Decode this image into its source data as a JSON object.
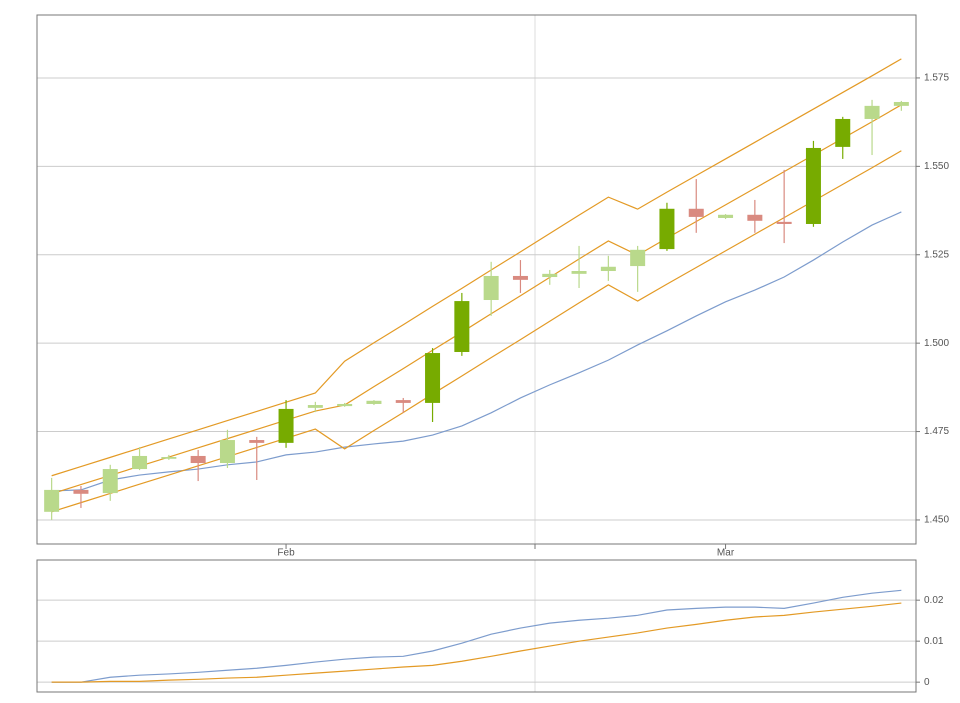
{
  "chart_data": [
    {
      "type": "candlestick",
      "categories": [
        null,
        null,
        null,
        null,
        null,
        null,
        null,
        null,
        "Feb",
        null,
        null,
        null,
        null,
        null,
        null,
        null,
        null,
        null,
        null,
        null,
        null,
        null,
        null,
        "Mar",
        null,
        null,
        null,
        null,
        null,
        null
      ],
      "ohlc": {
        "open": [
          1.4523,
          1.4585,
          1.4576,
          1.4644,
          1.4673,
          1.4681,
          1.4661,
          1.4726,
          1.4718,
          1.4817,
          1.4822,
          1.4828,
          1.4839,
          1.4831,
          1.4975,
          1.5122,
          1.519,
          1.5187,
          1.5196,
          1.5204,
          1.5218,
          1.5266,
          1.538,
          1.5354,
          1.5363,
          1.5343,
          1.5337,
          1.5555,
          1.5634,
          1.5671
        ],
        "high": [
          1.4619,
          1.4596,
          1.4656,
          1.4706,
          1.4684,
          1.4698,
          1.4755,
          1.4735,
          1.4839,
          1.4834,
          1.4831,
          1.4839,
          1.4845,
          1.4986,
          1.5142,
          1.523,
          1.5235,
          1.5207,
          1.5275,
          1.5247,
          1.5275,
          1.5397,
          1.5464,
          1.5365,
          1.5405,
          1.549,
          1.5572,
          1.564,
          1.5688,
          1.5685
        ],
        "low": [
          1.45,
          1.4534,
          1.4554,
          1.4641,
          1.467,
          1.461,
          1.4647,
          1.4613,
          1.4704,
          1.4805,
          1.482,
          1.4825,
          1.4803,
          1.4777,
          1.4964,
          1.5077,
          1.5142,
          1.5165,
          1.5156,
          1.5176,
          1.5145,
          1.5261,
          1.5312,
          1.5351,
          1.5312,
          1.5283,
          1.5329,
          1.5521,
          1.5532,
          1.5657
        ],
        "close": [
          1.4585,
          1.4574,
          1.4644,
          1.4681,
          1.4678,
          1.4661,
          1.4726,
          1.4718,
          1.4814,
          1.4825,
          1.4828,
          1.4837,
          1.4831,
          1.4972,
          1.5119,
          1.519,
          1.5179,
          1.5196,
          1.5204,
          1.5216,
          1.5264,
          1.538,
          1.5357,
          1.5363,
          1.5346,
          1.5337,
          1.5552,
          1.5634,
          1.5671,
          1.5682
        ],
        "colors": [
          "#b9d98b",
          "#d98a80",
          "#b9d98b",
          "#b9d98b",
          "#b9d98b",
          "#d98a80",
          "#b9d98b",
          "#d98a80",
          "#77ab00",
          "#b9d98b",
          "#b9d98b",
          "#b9d98b",
          "#d98a80",
          "#77ab00",
          "#77ab00",
          "#b9d98b",
          "#d98a80",
          "#b9d98b",
          "#b9d98b",
          "#b9d98b",
          "#b9d98b",
          "#77ab00",
          "#d98a80",
          "#b9d98b",
          "#d98a80",
          "#d98a80",
          "#77ab00",
          "#77ab00",
          "#b9d98b",
          "#b9d98b"
        ]
      },
      "series": [
        {
          "color": "#7d9ccd",
          "values": [
            1.4582,
            1.4585,
            1.4613,
            1.4627,
            1.4636,
            1.4644,
            1.4656,
            1.4664,
            1.4684,
            1.4692,
            1.4706,
            1.4715,
            1.4723,
            1.474,
            1.4766,
            1.4803,
            1.4845,
            1.4882,
            1.4916,
            1.4952,
            1.4995,
            1.5035,
            1.5077,
            1.5117,
            1.515,
            1.5187,
            1.5235,
            1.5286,
            1.5334,
            1.5371
          ]
        },
        {
          "color": "#e39a25",
          "values": [
            1.4625,
            1.4651,
            1.4677,
            1.4703,
            1.4729,
            1.4755,
            1.4781,
            1.4807,
            1.4833,
            1.4859,
            1.4949,
            1.5001,
            1.5052,
            1.5104,
            1.5155,
            1.5207,
            1.5258,
            1.531,
            1.5362,
            1.5413,
            1.5379,
            1.5427,
            1.5474,
            1.5521,
            1.5568,
            1.5615,
            1.5662,
            1.5709,
            1.5756,
            1.5804
          ]
        },
        {
          "color": "#e39a25",
          "values": [
            1.4574,
            1.46,
            1.4626,
            1.4652,
            1.4678,
            1.4704,
            1.473,
            1.4756,
            1.4782,
            1.4808,
            1.4825,
            1.4877,
            1.4928,
            1.498,
            1.5031,
            1.5083,
            1.5134,
            1.5186,
            1.5238,
            1.5289,
            1.5249,
            1.5297,
            1.5344,
            1.5391,
            1.5438,
            1.5485,
            1.5532,
            1.5579,
            1.5626,
            1.5674
          ]
        },
        {
          "color": "#e39a25",
          "values": [
            1.4523,
            1.4549,
            1.4575,
            1.4601,
            1.4627,
            1.4653,
            1.4679,
            1.4705,
            1.4731,
            1.4757,
            1.4701,
            1.4753,
            1.4804,
            1.4856,
            1.4907,
            1.4959,
            1.501,
            1.5062,
            1.5114,
            1.5165,
            1.5119,
            1.5167,
            1.5214,
            1.5261,
            1.5308,
            1.5355,
            1.5402,
            1.5449,
            1.5496,
            1.5544
          ]
        }
      ],
      "ylim": [
        1.4432,
        1.5928
      ],
      "yticks": [
        {
          "value": 1.45,
          "label": "1.450"
        },
        1.475,
        {
          "value": 1.5,
          "label": "1.500"
        },
        1.525,
        {
          "value": 1.55,
          "label": "1.550"
        },
        1.575
      ],
      "grid": true
    },
    {
      "type": "line",
      "series": [
        {
          "color": "#7d9ccd",
          "values": [
            0,
            0,
            0.0012,
            0.0017,
            0.002,
            0.0024,
            0.0029,
            0.0034,
            0.0041,
            0.0049,
            0.0056,
            0.0061,
            0.0063,
            0.0076,
            0.0095,
            0.0117,
            0.0132,
            0.0144,
            0.0151,
            0.0156,
            0.0163,
            0.0176,
            0.018,
            0.0183,
            0.0183,
            0.018,
            0.0193,
            0.0207,
            0.0217,
            0.0224
          ]
        },
        {
          "color": "#e39a25",
          "values": [
            0,
            0,
            0.0002,
            0.0002,
            0.0005,
            0.0007,
            0.001,
            0.0012,
            0.0017,
            0.0022,
            0.0027,
            0.0032,
            0.0037,
            0.0041,
            0.0051,
            0.0063,
            0.0076,
            0.0088,
            0.01,
            0.011,
            0.012,
            0.0132,
            0.0141,
            0.0151,
            0.0159,
            0.0163,
            0.0171,
            0.0178,
            0.0185,
            0.0193
          ]
        }
      ],
      "ylim": [
        -0.0024,
        0.0298
      ],
      "yticks": [
        0,
        0.01,
        0.02
      ],
      "grid": true
    }
  ]
}
